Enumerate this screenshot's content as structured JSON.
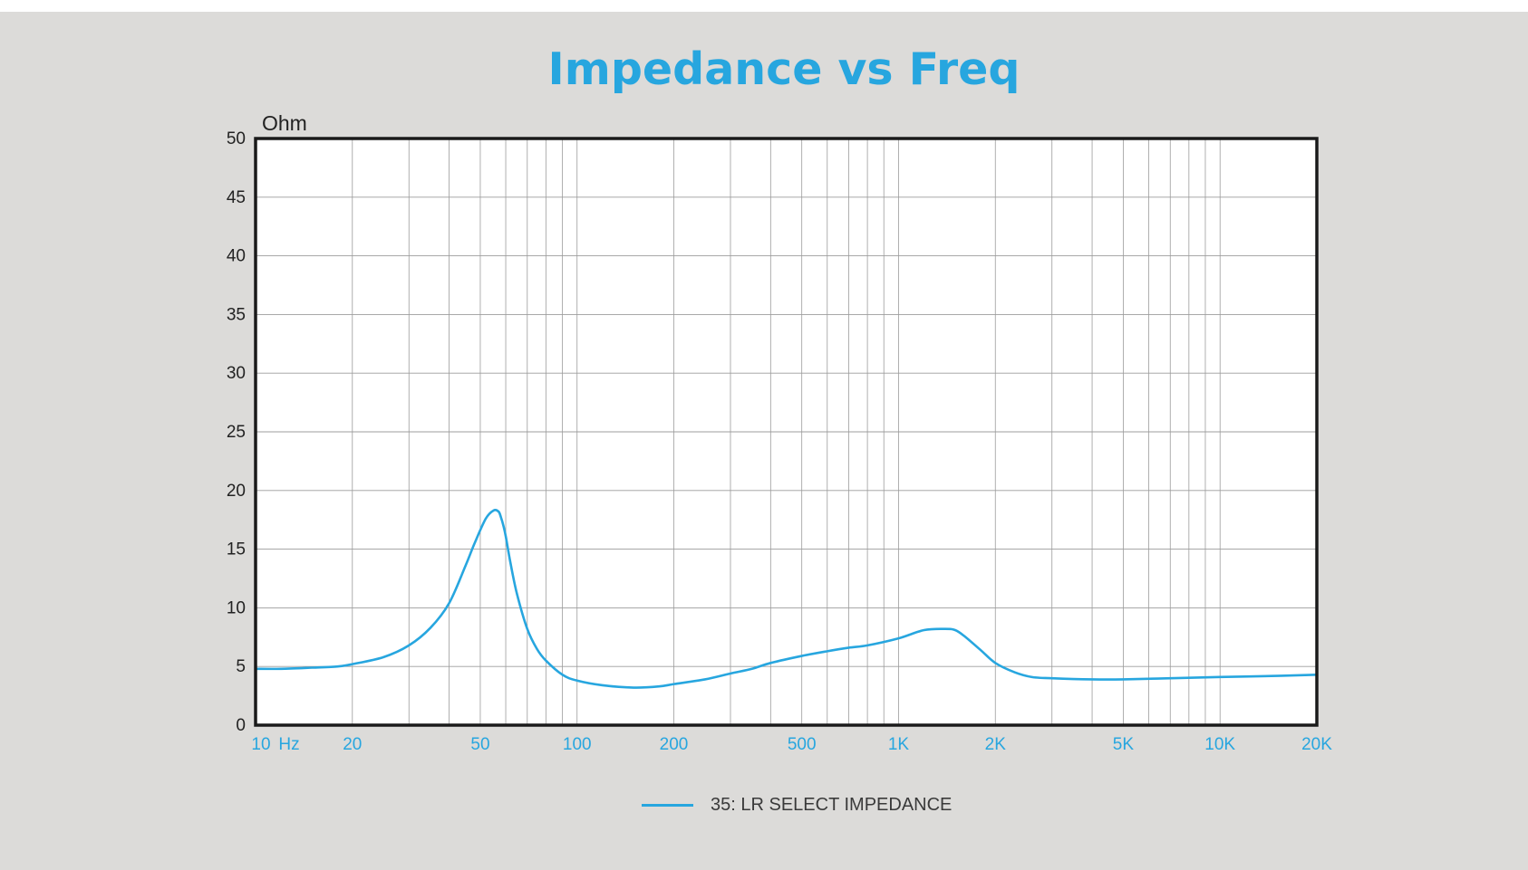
{
  "colors": {
    "background": "#dcdbd9",
    "plot_background": "#ffffff",
    "accent": "#27a6df",
    "grid": "#9c9c9c",
    "axis_text": "#222222"
  },
  "chart_data": {
    "type": "line",
    "title": "Impedance vs Freq",
    "ylabel": "Ohm",
    "xscale": "log",
    "xlim": [
      10,
      20000
    ],
    "ylim": [
      0,
      50
    ],
    "grid": true,
    "legend_position": "bottom-center",
    "x_ticks": [
      {
        "value": 10,
        "label": "10"
      },
      {
        "value": 20,
        "label": "20"
      },
      {
        "value": 50,
        "label": "50"
      },
      {
        "value": 100,
        "label": "100"
      },
      {
        "value": 200,
        "label": "200"
      },
      {
        "value": 500,
        "label": "500"
      },
      {
        "value": 1000,
        "label": "1K"
      },
      {
        "value": 2000,
        "label": "2K"
      },
      {
        "value": 5000,
        "label": "5K"
      },
      {
        "value": 10000,
        "label": "10K"
      },
      {
        "value": 20000,
        "label": "20K"
      }
    ],
    "x_unit_label": "Hz",
    "y_ticks": [
      0,
      5,
      10,
      15,
      20,
      25,
      30,
      35,
      40,
      45,
      50
    ],
    "series": [
      {
        "name": "35: LR SELECT IMPEDANCE",
        "color": "#27a6df",
        "x": [
          10,
          12,
          15,
          18,
          20,
          25,
          30,
          35,
          40,
          45,
          48,
          52,
          55,
          57,
          58,
          59,
          60,
          62,
          65,
          70,
          75,
          80,
          90,
          100,
          120,
          150,
          180,
          200,
          250,
          300,
          350,
          400,
          500,
          600,
          700,
          800,
          1000,
          1200,
          1400,
          1500,
          1600,
          1800,
          2000,
          2300,
          2600,
          3000,
          4000,
          5000,
          7000,
          10000,
          15000,
          20000
        ],
        "y": [
          4.8,
          4.8,
          4.9,
          5.0,
          5.2,
          5.8,
          6.8,
          8.3,
          10.4,
          13.6,
          15.5,
          17.6,
          18.3,
          18.2,
          17.7,
          17.0,
          16.1,
          13.9,
          11.2,
          8.2,
          6.5,
          5.5,
          4.3,
          3.8,
          3.4,
          3.2,
          3.3,
          3.5,
          3.9,
          4.4,
          4.8,
          5.3,
          5.9,
          6.3,
          6.6,
          6.8,
          7.4,
          8.1,
          8.2,
          8.1,
          7.6,
          6.4,
          5.3,
          4.5,
          4.1,
          4.0,
          3.9,
          3.9,
          4.0,
          4.1,
          4.2,
          4.3
        ]
      }
    ]
  }
}
